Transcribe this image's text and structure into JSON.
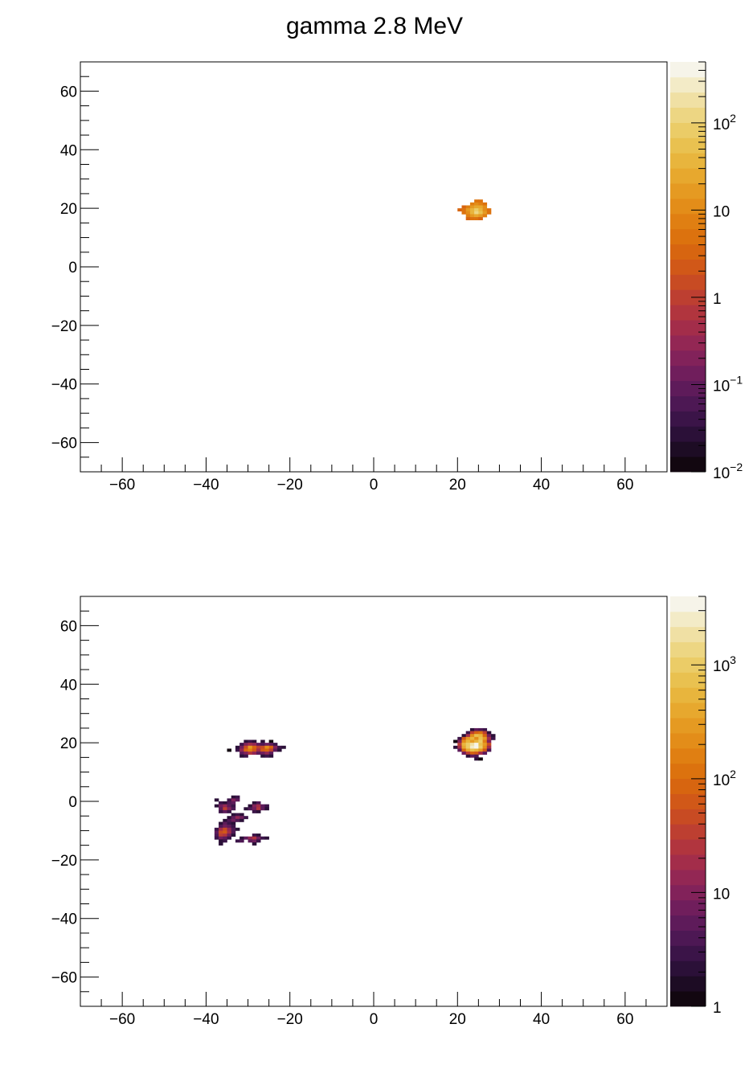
{
  "title": "gamma 2.8 MeV",
  "palette": [
    "#120710",
    "#1d0c24",
    "#2b1038",
    "#3b1448",
    "#4d1854",
    "#5e1b5a",
    "#701e5c",
    "#82225a",
    "#932754",
    "#a32d4a",
    "#b1353e",
    "#bd3f31",
    "#c84b23",
    "#d15818",
    "#d76510",
    "#dc720e",
    "#e07f12",
    "#e38d19",
    "#e59a22",
    "#e7a82e",
    "#e8b53d",
    "#e9c150",
    "#ebcc67",
    "#edd683",
    "#f0e0a4",
    "#f3ebc7",
    "#f6f4e9"
  ],
  "chart_data": [
    {
      "type": "heatmap",
      "title": "",
      "xlabel": "",
      "ylabel": "",
      "xlim": [
        -70,
        70
      ],
      "ylim": [
        -70,
        70
      ],
      "zscale": "log",
      "zlim": [
        0.01,
        500
      ],
      "x_ticks": [
        -60,
        -40,
        -20,
        0,
        20,
        40,
        60
      ],
      "x_tick_labels": [
        "−60",
        "−40",
        "−20",
        "0",
        "20",
        "40",
        "60"
      ],
      "y_ticks": [
        -60,
        -40,
        -20,
        0,
        20,
        40,
        60
      ],
      "y_tick_labels": [
        "−60",
        "−40",
        "−20",
        "0",
        "20",
        "40",
        "60"
      ],
      "z_ticks": [
        0.01,
        0.1,
        1,
        10,
        100
      ],
      "z_tick_labels": [
        {
          "base": "10",
          "exp": "−2"
        },
        {
          "base": "10",
          "exp": "−1"
        },
        {
          "base": "1",
          "exp": ""
        },
        {
          "base": "10",
          "exp": ""
        },
        {
          "base": "10",
          "exp": "2"
        }
      ],
      "grid": false,
      "bin_size": 1,
      "bins": [
        [
          24,
          22,
          5
        ],
        [
          25,
          22,
          6
        ],
        [
          23,
          21,
          8
        ],
        [
          24,
          21,
          12
        ],
        [
          25,
          21,
          9
        ],
        [
          26,
          21,
          6
        ],
        [
          21,
          20,
          4
        ],
        [
          22,
          20,
          8
        ],
        [
          23,
          20,
          15
        ],
        [
          24,
          20,
          25
        ],
        [
          25,
          20,
          22
        ],
        [
          26,
          20,
          10
        ],
        [
          20,
          19,
          3
        ],
        [
          21,
          19,
          6
        ],
        [
          22,
          19,
          14
        ],
        [
          23,
          19,
          35
        ],
        [
          24,
          19,
          70
        ],
        [
          25,
          19,
          45
        ],
        [
          26,
          19,
          12
        ],
        [
          27,
          19,
          5
        ],
        [
          21,
          18,
          5
        ],
        [
          22,
          18,
          12
        ],
        [
          23,
          18,
          40
        ],
        [
          24,
          18,
          150
        ],
        [
          25,
          18,
          60
        ],
        [
          26,
          18,
          15
        ],
        [
          27,
          18,
          6
        ],
        [
          22,
          17,
          8
        ],
        [
          23,
          17,
          20
        ],
        [
          24,
          17,
          30
        ],
        [
          25,
          17,
          18
        ],
        [
          26,
          17,
          8
        ],
        [
          22,
          16,
          4
        ],
        [
          23,
          16,
          6
        ],
        [
          24,
          16,
          5
        ],
        [
          25,
          16,
          4
        ]
      ]
    },
    {
      "type": "heatmap",
      "title": "",
      "xlabel": "",
      "ylabel": "",
      "xlim": [
        -70,
        70
      ],
      "ylim": [
        -70,
        70
      ],
      "zscale": "log",
      "zlim": [
        1,
        4000
      ],
      "x_ticks": [
        -60,
        -40,
        -20,
        0,
        20,
        40,
        60
      ],
      "x_tick_labels": [
        "−60",
        "−40",
        "−20",
        "0",
        "20",
        "40",
        "60"
      ],
      "y_ticks": [
        -60,
        -40,
        -20,
        0,
        20,
        40,
        60
      ],
      "y_tick_labels": [
        "−60",
        "−40",
        "−20",
        "0",
        "20",
        "40",
        "60"
      ],
      "z_ticks": [
        1,
        10,
        100,
        1000
      ],
      "z_tick_labels": [
        {
          "base": "1",
          "exp": ""
        },
        {
          "base": "10",
          "exp": ""
        },
        {
          "base": "10",
          "exp": "2"
        },
        {
          "base": "10",
          "exp": "3"
        }
      ],
      "grid": false,
      "bin_size": 1,
      "bins": [
        [
          23,
          24,
          2
        ],
        [
          24,
          24,
          6
        ],
        [
          25,
          24,
          4
        ],
        [
          26,
          24,
          3
        ],
        [
          22,
          23,
          3
        ],
        [
          23,
          23,
          30
        ],
        [
          24,
          23,
          80
        ],
        [
          25,
          23,
          120
        ],
        [
          26,
          23,
          30
        ],
        [
          27,
          23,
          2
        ],
        [
          21,
          22,
          2
        ],
        [
          22,
          22,
          20
        ],
        [
          23,
          22,
          200
        ],
        [
          24,
          22,
          700
        ],
        [
          25,
          22,
          600
        ],
        [
          26,
          22,
          100
        ],
        [
          27,
          22,
          8
        ],
        [
          28,
          22,
          2
        ],
        [
          20,
          21,
          3
        ],
        [
          21,
          21,
          60
        ],
        [
          22,
          21,
          300
        ],
        [
          23,
          21,
          500
        ],
        [
          24,
          21,
          200
        ],
        [
          25,
          21,
          700
        ],
        [
          26,
          21,
          300
        ],
        [
          27,
          21,
          20
        ],
        [
          28,
          21,
          3
        ],
        [
          19,
          20,
          1
        ],
        [
          20,
          20,
          10
        ],
        [
          21,
          20,
          200
        ],
        [
          22,
          20,
          600
        ],
        [
          23,
          20,
          300
        ],
        [
          24,
          20,
          500
        ],
        [
          25,
          20,
          900
        ],
        [
          26,
          20,
          150
        ],
        [
          27,
          20,
          10
        ],
        [
          20,
          19,
          30
        ],
        [
          21,
          19,
          500
        ],
        [
          22,
          19,
          900
        ],
        [
          23,
          19,
          2000
        ],
        [
          24,
          19,
          3500
        ],
        [
          25,
          19,
          800
        ],
        [
          26,
          19,
          300
        ],
        [
          27,
          19,
          40
        ],
        [
          19,
          18,
          2
        ],
        [
          20,
          18,
          20
        ],
        [
          21,
          18,
          400
        ],
        [
          22,
          18,
          1000
        ],
        [
          23,
          18,
          2500
        ],
        [
          24,
          18,
          3000
        ],
        [
          25,
          18,
          900
        ],
        [
          26,
          18,
          200
        ],
        [
          27,
          18,
          20
        ],
        [
          20,
          17,
          5
        ],
        [
          21,
          17,
          100
        ],
        [
          22,
          17,
          400
        ],
        [
          23,
          17,
          700
        ],
        [
          24,
          17,
          600
        ],
        [
          25,
          17,
          300
        ],
        [
          26,
          17,
          60
        ],
        [
          27,
          17,
          4
        ],
        [
          21,
          16,
          8
        ],
        [
          22,
          16,
          30
        ],
        [
          23,
          16,
          80
        ],
        [
          24,
          16,
          60
        ],
        [
          25,
          16,
          20
        ],
        [
          26,
          16,
          5
        ],
        [
          22,
          15,
          2
        ],
        [
          23,
          15,
          5
        ],
        [
          24,
          15,
          4
        ],
        [
          24,
          14,
          2
        ],
        [
          25,
          14,
          1
        ],
        [
          -31,
          20,
          2
        ],
        [
          -30,
          20,
          3
        ],
        [
          -29,
          20,
          2
        ],
        [
          -27,
          20,
          2
        ],
        [
          -25,
          20,
          1
        ],
        [
          -32,
          19,
          3
        ],
        [
          -31,
          19,
          10
        ],
        [
          -30,
          19,
          20
        ],
        [
          -29,
          19,
          12
        ],
        [
          -28,
          19,
          5
        ],
        [
          -27,
          19,
          4
        ],
        [
          -26,
          19,
          8
        ],
        [
          -25,
          19,
          5
        ],
        [
          -24,
          19,
          3
        ],
        [
          -33,
          18,
          2
        ],
        [
          -32,
          18,
          8
        ],
        [
          -31,
          18,
          40
        ],
        [
          -30,
          18,
          300
        ],
        [
          -29,
          18,
          100
        ],
        [
          -28,
          18,
          30
        ],
        [
          -27,
          18,
          50
        ],
        [
          -26,
          18,
          200
        ],
        [
          -25,
          18,
          80
        ],
        [
          -24,
          18,
          10
        ],
        [
          -23,
          18,
          3
        ],
        [
          -22,
          18,
          2
        ],
        [
          -35,
          17,
          1
        ],
        [
          -33,
          17,
          3
        ],
        [
          -32,
          17,
          15
        ],
        [
          -31,
          17,
          80
        ],
        [
          -30,
          17,
          150
        ],
        [
          -29,
          17,
          60
        ],
        [
          -28,
          17,
          20
        ],
        [
          -27,
          17,
          70
        ],
        [
          -26,
          17,
          100
        ],
        [
          -25,
          17,
          30
        ],
        [
          -24,
          17,
          5
        ],
        [
          -23,
          17,
          2
        ],
        [
          -32,
          16,
          5
        ],
        [
          -31,
          16,
          10
        ],
        [
          -30,
          16,
          25
        ],
        [
          -29,
          16,
          12
        ],
        [
          -28,
          16,
          6
        ],
        [
          -27,
          16,
          8
        ],
        [
          -26,
          16,
          15
        ],
        [
          -25,
          16,
          6
        ],
        [
          -32,
          15,
          2
        ],
        [
          -31,
          15,
          3
        ],
        [
          -27,
          15,
          2
        ],
        [
          -26,
          15,
          3
        ],
        [
          -25,
          15,
          2
        ],
        [
          -34,
          1,
          2
        ],
        [
          -33,
          1,
          3
        ],
        [
          -38,
          0,
          2
        ],
        [
          -35,
          0,
          3
        ],
        [
          -34,
          0,
          10
        ],
        [
          -33,
          0,
          5
        ],
        [
          -37,
          -1,
          3
        ],
        [
          -36,
          -1,
          2
        ],
        [
          -35,
          -1,
          4
        ],
        [
          -34,
          -1,
          6
        ],
        [
          -29,
          -1,
          2
        ],
        [
          -28,
          -1,
          4
        ],
        [
          -38,
          -2,
          2
        ],
        [
          -37,
          -2,
          8
        ],
        [
          -36,
          -2,
          15
        ],
        [
          -35,
          -2,
          6
        ],
        [
          -34,
          -2,
          3
        ],
        [
          -30,
          -2,
          2
        ],
        [
          -29,
          -2,
          10
        ],
        [
          -28,
          -2,
          20
        ],
        [
          -27,
          -2,
          6
        ],
        [
          -26,
          -2,
          3
        ],
        [
          -37,
          -3,
          6
        ],
        [
          -36,
          -3,
          30
        ],
        [
          -35,
          -3,
          10
        ],
        [
          -34,
          -3,
          4
        ],
        [
          -31,
          -3,
          2
        ],
        [
          -30,
          -3,
          4
        ],
        [
          -29,
          -3,
          8
        ],
        [
          -28,
          -3,
          25
        ],
        [
          -27,
          -3,
          5
        ],
        [
          -26,
          -3,
          2
        ],
        [
          -37,
          -4,
          3
        ],
        [
          -36,
          -4,
          5
        ],
        [
          -35,
          -4,
          3
        ],
        [
          -29,
          -4,
          3
        ],
        [
          -28,
          -4,
          2
        ],
        [
          -34,
          -5,
          2
        ],
        [
          -33,
          -5,
          3
        ],
        [
          -32,
          -5,
          2
        ],
        [
          -35,
          -6,
          2
        ],
        [
          -34,
          -6,
          6
        ],
        [
          -33,
          -6,
          15
        ],
        [
          -32,
          -6,
          8
        ],
        [
          -31,
          -6,
          3
        ],
        [
          -36,
          -7,
          2
        ],
        [
          -35,
          -7,
          4
        ],
        [
          -34,
          -7,
          8
        ],
        [
          -33,
          -7,
          4
        ],
        [
          -32,
          -7,
          2
        ],
        [
          -37,
          -8,
          2
        ],
        [
          -36,
          -8,
          5
        ],
        [
          -35,
          -8,
          3
        ],
        [
          -34,
          -8,
          2
        ],
        [
          -37,
          -9,
          4
        ],
        [
          -36,
          -9,
          8
        ],
        [
          -35,
          -9,
          6
        ],
        [
          -34,
          -9,
          3
        ],
        [
          -38,
          -10,
          3
        ],
        [
          -37,
          -10,
          20
        ],
        [
          -36,
          -10,
          40
        ],
        [
          -35,
          -10,
          15
        ],
        [
          -34,
          -10,
          4
        ],
        [
          -33,
          -10,
          2
        ],
        [
          -38,
          -11,
          5
        ],
        [
          -37,
          -11,
          50
        ],
        [
          -36,
          -11,
          70
        ],
        [
          -35,
          -11,
          20
        ],
        [
          -34,
          -11,
          4
        ],
        [
          -38,
          -12,
          4
        ],
        [
          -37,
          -12,
          30
        ],
        [
          -36,
          -12,
          25
        ],
        [
          -35,
          -12,
          8
        ],
        [
          -34,
          -12,
          2
        ],
        [
          -29,
          -12,
          3
        ],
        [
          -28,
          -12,
          2
        ],
        [
          -38,
          -13,
          3
        ],
        [
          -37,
          -13,
          8
        ],
        [
          -36,
          -13,
          5
        ],
        [
          -35,
          -13,
          3
        ],
        [
          -32,
          -13,
          2
        ],
        [
          -31,
          -13,
          6
        ],
        [
          -30,
          -13,
          15
        ],
        [
          -29,
          -13,
          25
        ],
        [
          -28,
          -13,
          8
        ],
        [
          -27,
          -13,
          3
        ],
        [
          -26,
          -13,
          2
        ],
        [
          -37,
          -14,
          2
        ],
        [
          -36,
          -14,
          3
        ],
        [
          -33,
          -14,
          3
        ],
        [
          -32,
          -14,
          4
        ],
        [
          -30,
          -14,
          5
        ],
        [
          -29,
          -14,
          8
        ],
        [
          -28,
          -14,
          3
        ],
        [
          -37,
          -15,
          2
        ],
        [
          -29,
          -15,
          2
        ]
      ]
    }
  ]
}
